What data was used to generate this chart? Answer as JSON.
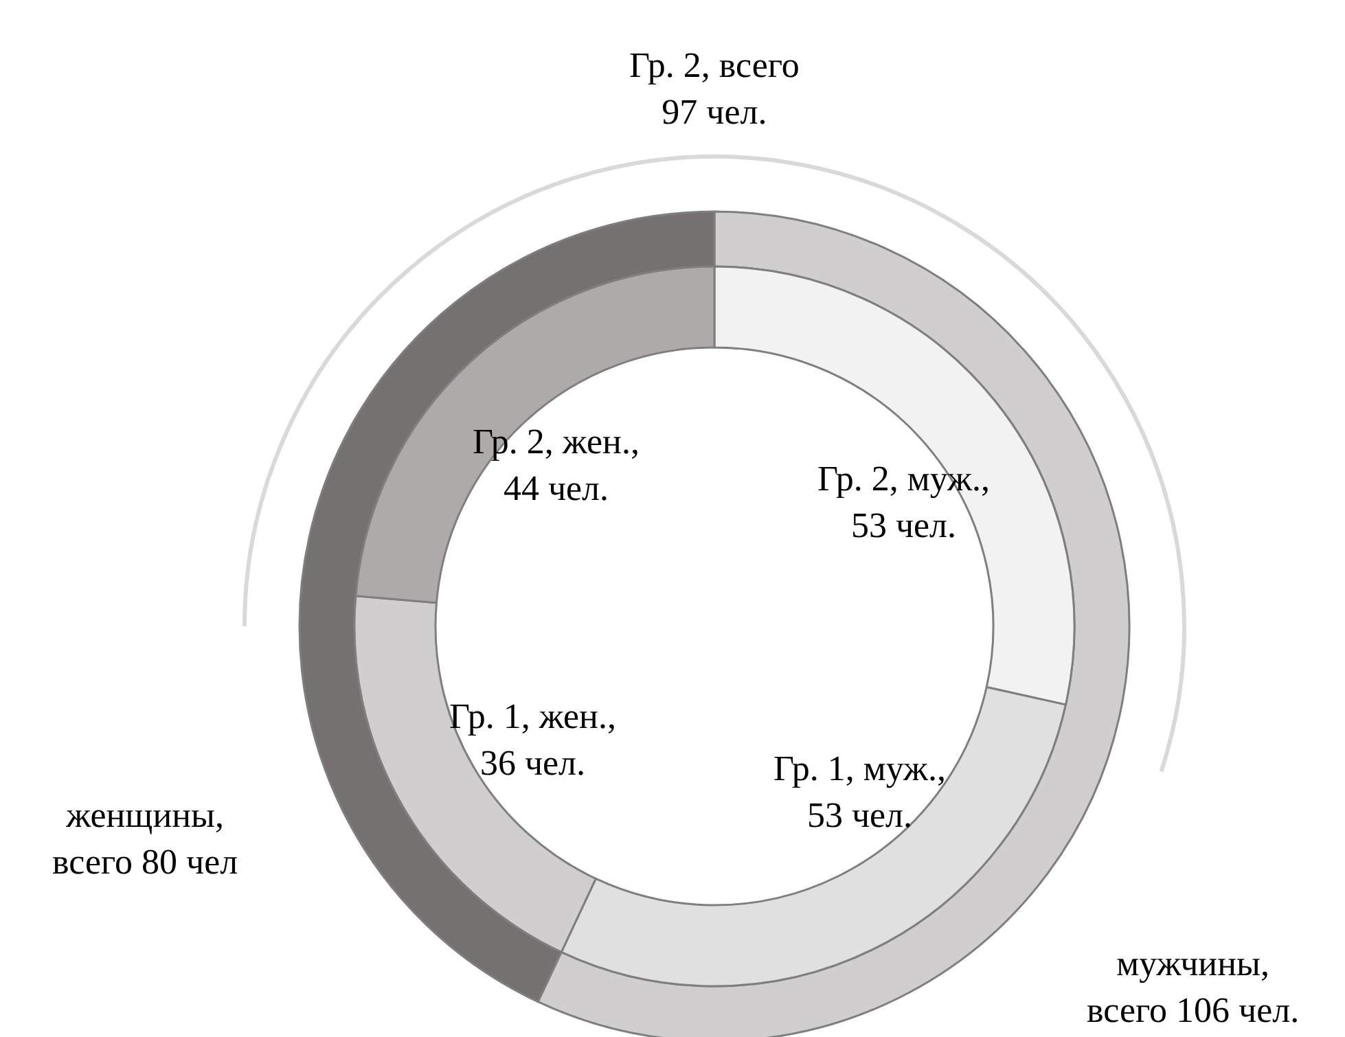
{
  "chart_data": [
    {
      "type": "donut",
      "categories": [
        null,
        null
      ],
      "values": [
        106,
        80
      ],
      "value_labels": [
        "мужчины,\nвсего 106 чел.",
        "женщины,\nвсего 80 чел"
      ],
      "colors": [
        "#d0cece",
        "#767171"
      ]
    },
    {
      "type": "donut",
      "categories": [
        null,
        null,
        null,
        null
      ],
      "values": [
        53,
        53,
        36,
        44
      ],
      "value_labels": [
        "Гр. 2, муж.,\n53 чел.",
        "Гр. 1, муж.,\n53 чел.",
        "Гр. 1, жен.,\n36 чел.",
        "Гр. 2, жен.,\n44 чел."
      ],
      "colors": [
        "#f2f2f2",
        "#e0e0e0",
        "#d0cece",
        "#aeaaaa"
      ],
      "annotations": [
        "Гр. 2, всего\n97 чел."
      ]
    }
  ]
}
